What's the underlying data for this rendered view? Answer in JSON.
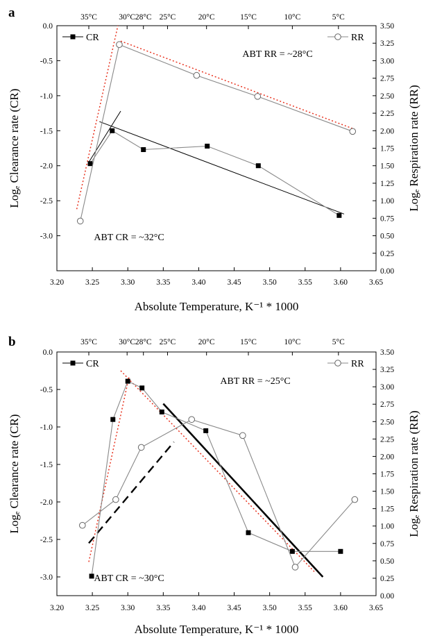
{
  "chart_data": [
    {
      "panel_label": "a",
      "type": "line",
      "xlabel": "Absolute Temperature, K⁻¹ * 1000",
      "ylabel_left": "Logₑ Clearance rate (CR)",
      "ylabel_right": "Logₑ Respiration rate (RR)",
      "xlim": [
        3.2,
        3.65
      ],
      "ylim_left": [
        -3.5,
        0.0
      ],
      "ylim_right": [
        0.0,
        3.5
      ],
      "x_ticks": [
        "3.20",
        "3.25",
        "3.30",
        "3.35",
        "3.40",
        "3.45",
        "3.50",
        "3.55",
        "3.60",
        "3.65"
      ],
      "y_ticks_left": [
        "0.0",
        "-0.5",
        "-1.0",
        "-1.5",
        "-2.0",
        "-2.5",
        "-3.0"
      ],
      "y_ticks_right": [
        "3.50",
        "3.25",
        "3.00",
        "2.75",
        "2.50",
        "2.25",
        "2.00",
        "1.75",
        "1.50",
        "1.25",
        "1.00",
        "0.75",
        "0.50",
        "0.25",
        "0.00"
      ],
      "top_temperatures": [
        {
          "label": "35°C",
          "x": 3.245
        },
        {
          "label": "30°C",
          "x": 3.299
        },
        {
          "label": "28°C",
          "x": 3.322
        },
        {
          "label": "25°C",
          "x": 3.356
        },
        {
          "label": "20°C",
          "x": 3.411
        },
        {
          "label": "15°C",
          "x": 3.47
        },
        {
          "label": "10°C",
          "x": 3.532
        },
        {
          "label": "5°C",
          "x": 3.597
        }
      ],
      "legend": {
        "cr": "CR",
        "rr": "RR"
      },
      "annotations": {
        "rr": "ABT RR = ~28°C",
        "cr": "ABT CR = ~32°C"
      },
      "series": [
        {
          "name": "CR",
          "axis": "left",
          "marker": "filled-square",
          "x": [
            3.247,
            3.278,
            3.322,
            3.412,
            3.484,
            3.598
          ],
          "y": [
            -1.97,
            -1.5,
            -1.77,
            -1.72,
            -2.0,
            -2.71
          ]
        },
        {
          "name": "RR",
          "axis": "right",
          "marker": "open-circle",
          "x": [
            3.233,
            3.288,
            3.397,
            3.483,
            3.617
          ],
          "y": [
            0.71,
            3.23,
            2.79,
            2.49,
            1.99
          ]
        }
      ],
      "fit_lines": [
        {
          "axis": "left",
          "style": "solid-thin",
          "x": [
            3.245,
            3.29
          ],
          "y": [
            -1.95,
            -1.22
          ]
        },
        {
          "axis": "left",
          "style": "solid-thin",
          "x": [
            3.26,
            3.605
          ],
          "y": [
            -1.37,
            -2.69
          ]
        },
        {
          "axis": "right",
          "style": "red-dotted",
          "x": [
            3.228,
            3.286
          ],
          "y": [
            0.88,
            3.5
          ]
        },
        {
          "axis": "right",
          "style": "red-dotted",
          "x": [
            3.29,
            3.62
          ],
          "y": [
            3.28,
            2.02
          ]
        }
      ]
    },
    {
      "panel_label": "b",
      "type": "line",
      "xlabel": "Absolute Temperature, K⁻¹ * 1000",
      "ylabel_left": "Logₑ Clearance rate (CR)",
      "ylabel_right": "Logₑ Respiration rate (RR)",
      "xlim": [
        3.2,
        3.65
      ],
      "ylim_left": [
        -3.25,
        0.0
      ],
      "ylim_right": [
        0.0,
        3.5
      ],
      "x_ticks": [
        "3.20",
        "3.25",
        "3.30",
        "3.35",
        "3.40",
        "3.45",
        "3.50",
        "3.55",
        "3.60",
        "3.65"
      ],
      "y_ticks_left": [
        "0.0",
        "-0.5",
        "-1.0",
        "-1.5",
        "-2.0",
        "-2.5",
        "-3.0"
      ],
      "y_ticks_right": [
        "3.50",
        "3.25",
        "3.00",
        "2.75",
        "2.50",
        "2.25",
        "2.00",
        "1.75",
        "1.50",
        "1.25",
        "1.00",
        "0.75",
        "0.50",
        "0.25",
        "0.00"
      ],
      "top_temperatures": [
        {
          "label": "35°C",
          "x": 3.245
        },
        {
          "label": "30°C",
          "x": 3.299
        },
        {
          "label": "28°C",
          "x": 3.322
        },
        {
          "label": "25°C",
          "x": 3.356
        },
        {
          "label": "20°C",
          "x": 3.411
        },
        {
          "label": "15°C",
          "x": 3.47
        },
        {
          "label": "10°C",
          "x": 3.532
        },
        {
          "label": "5°C",
          "x": 3.597
        }
      ],
      "legend": {
        "cr": "CR",
        "rr": "RR"
      },
      "annotations": {
        "rr": "ABT RR = ~25°C",
        "cr": "ABT CR = ~30°C"
      },
      "series": [
        {
          "name": "CR",
          "axis": "left",
          "marker": "filled-square",
          "x": [
            3.249,
            3.279,
            3.3,
            3.32,
            3.348,
            3.41,
            3.47,
            3.532,
            3.6
          ],
          "y": [
            -2.99,
            -0.9,
            -0.39,
            -0.48,
            -0.8,
            -1.05,
            -2.41,
            -2.66,
            -2.66
          ]
        },
        {
          "name": "RR",
          "axis": "right",
          "marker": "open-circle",
          "x": [
            3.236,
            3.283,
            3.319,
            3.39,
            3.462,
            3.536,
            3.62
          ],
          "y": [
            1.01,
            1.38,
            2.13,
            2.53,
            2.3,
            0.41,
            1.38
          ]
        }
      ],
      "fit_lines": [
        {
          "axis": "left",
          "style": "red-dotted",
          "x": [
            3.245,
            3.302
          ],
          "y": [
            -2.8,
            -0.32
          ]
        },
        {
          "axis": "left",
          "style": "red-dotted",
          "x": [
            3.29,
            3.565
          ],
          "y": [
            -0.25,
            -2.95
          ]
        },
        {
          "axis": "left",
          "style": "solid-thick",
          "x": [
            3.35,
            3.575
          ],
          "y": [
            -0.69,
            -3.0
          ]
        },
        {
          "axis": "left",
          "style": "dashed-thick",
          "x": [
            3.245,
            3.365
          ],
          "y": [
            -2.55,
            -1.2
          ]
        }
      ]
    }
  ]
}
